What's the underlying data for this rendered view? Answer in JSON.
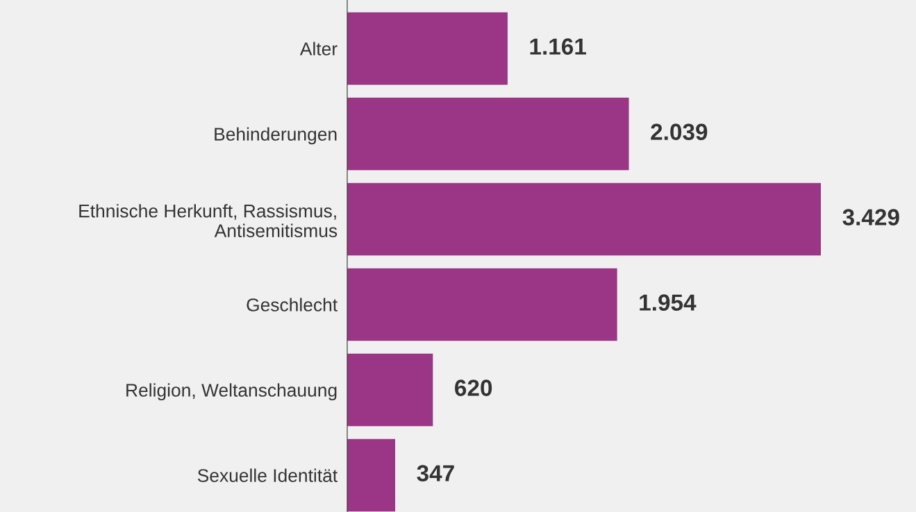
{
  "chart_data": {
    "type": "bar",
    "orientation": "horizontal",
    "categories": [
      "Alter",
      "Behinderungen",
      "Ethnische Herkunft, Rassismus,\nAntisemitismus",
      "Geschlecht",
      "Religion, Weltanschauung",
      "Sexuelle Identität"
    ],
    "values": [
      1161,
      2039,
      3429,
      1954,
      620,
      347
    ],
    "value_labels": [
      "1.161",
      "2.039",
      "3.429",
      "1.954",
      "620",
      "347"
    ],
    "color": "#9b3585",
    "grid": false,
    "legend": false
  }
}
